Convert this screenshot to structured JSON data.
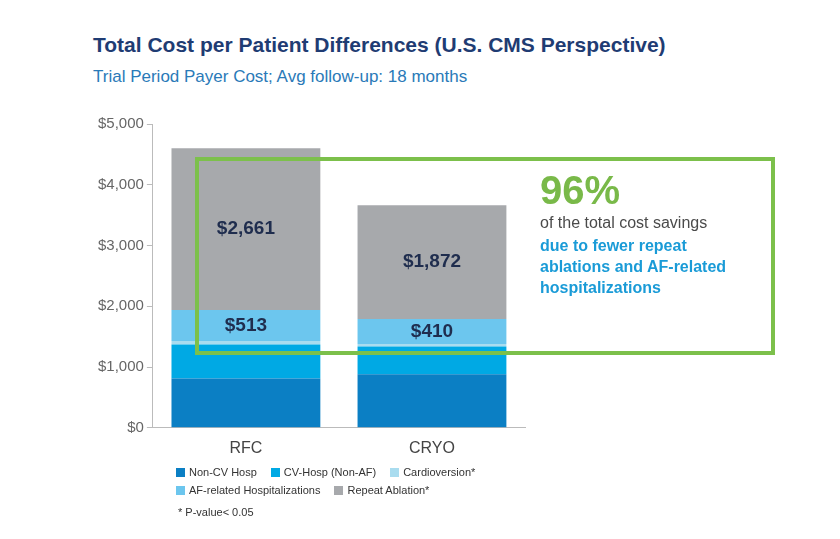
{
  "chart_data": {
    "type": "bar",
    "title": "Total Cost per Patient Differences (U.S. CMS Perspective)",
    "subtitle": "Trial Period Payer Cost; Avg follow-up: 18 months",
    "categories": [
      "RFC",
      "CRYO"
    ],
    "series": [
      {
        "name": "Non-CV Hosp",
        "color": "#0b7fc4",
        "values": [
          810,
          880
        ]
      },
      {
        "name": "CV-Hosp (Non-AF)",
        "color": "#00a9e4",
        "values": [
          560,
          460
        ]
      },
      {
        "name": "Cardioversion*",
        "color": "#a9dcef",
        "values": [
          57,
          40
        ]
      },
      {
        "name": "AF-related Hospitalizations",
        "color": "#6cc6ee",
        "values": [
          513,
          410
        ],
        "data_labels": true,
        "value_labels": [
          "$513",
          "$410"
        ]
      },
      {
        "name": "Repeat Ablation*",
        "color": "#a7a9ac",
        "values": [
          2661,
          1872
        ],
        "data_labels": true,
        "value_labels": [
          "$2,661",
          "$1,872"
        ]
      }
    ],
    "ylim": [
      0,
      5000
    ],
    "yticks": [
      {
        "value": 0,
        "label": "$0"
      },
      {
        "value": 1000,
        "label": "$1,000"
      },
      {
        "value": 2000,
        "label": "$2,000"
      },
      {
        "value": 3000,
        "label": "$3,000"
      },
      {
        "value": 4000,
        "label": "$4,000"
      },
      {
        "value": 5000,
        "label": "$5,000"
      }
    ],
    "grid": false,
    "stacked": true,
    "legend": "bottom",
    "annotations": [
      "96%",
      "of the total cost savings",
      "due to fewer repeat ablations and AF-related hospitalizations"
    ],
    "footnote": "* P-value< 0.05"
  }
}
